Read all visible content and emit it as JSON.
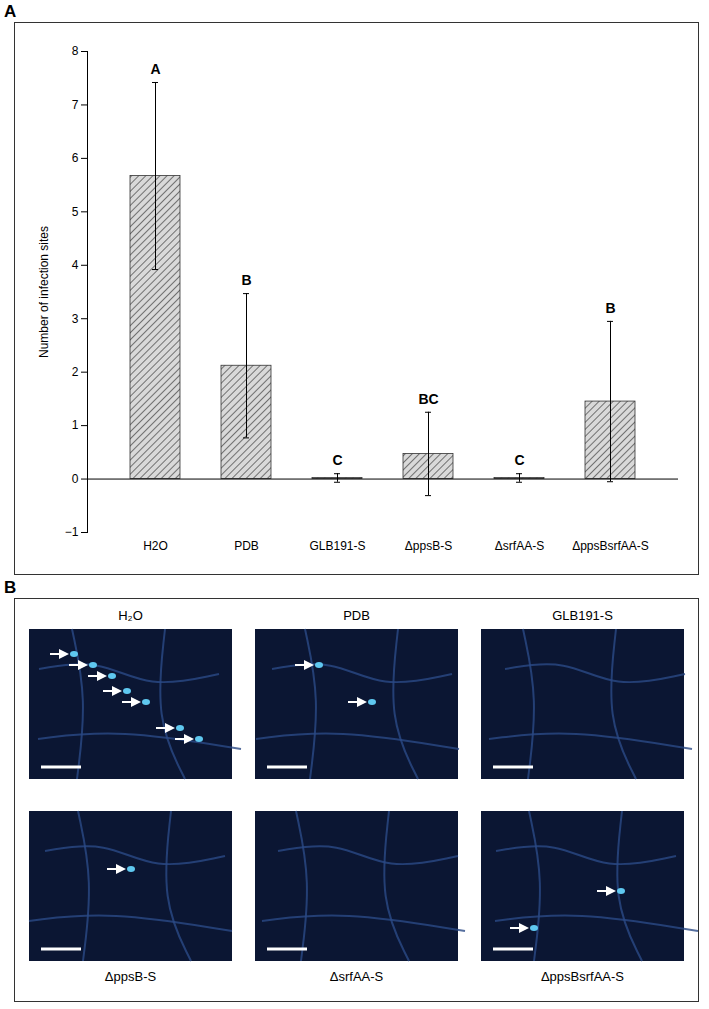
{
  "chart_data": {
    "type": "bar",
    "panel_label": "A",
    "categories": [
      "H2O",
      "PDB",
      "GLB191-S",
      "ΔppsB-S",
      "ΔsrfAA-S",
      "ΔppsBsrfAA-S"
    ],
    "values": [
      5.67,
      2.12,
      0.02,
      0.47,
      0.02,
      1.45
    ],
    "errors": [
      1.75,
      1.35,
      0.08,
      0.78,
      0.08,
      1.5
    ],
    "letters": [
      "A",
      "B",
      "C",
      "BC",
      "C",
      "B"
    ],
    "ylabel": "Number of infection sites",
    "color": "#d9d9d9",
    "ylim": [
      -1,
      8
    ],
    "yticks": [
      -1,
      0,
      1,
      2,
      3,
      4,
      5,
      6,
      7,
      8
    ],
    "grid": false
  },
  "panel_b": {
    "panel_label": "B",
    "images": [
      {
        "label": "H₂O",
        "arrows": 7
      },
      {
        "label": "PDB",
        "arrows": 2
      },
      {
        "label": "GLB191-S",
        "arrows": 0
      },
      {
        "label": "ΔppsB-S",
        "arrows": 1
      },
      {
        "label": "ΔsrfAA-S",
        "arrows": 0
      },
      {
        "label": "ΔppsBsrfAA-S",
        "arrows": 2
      }
    ]
  }
}
